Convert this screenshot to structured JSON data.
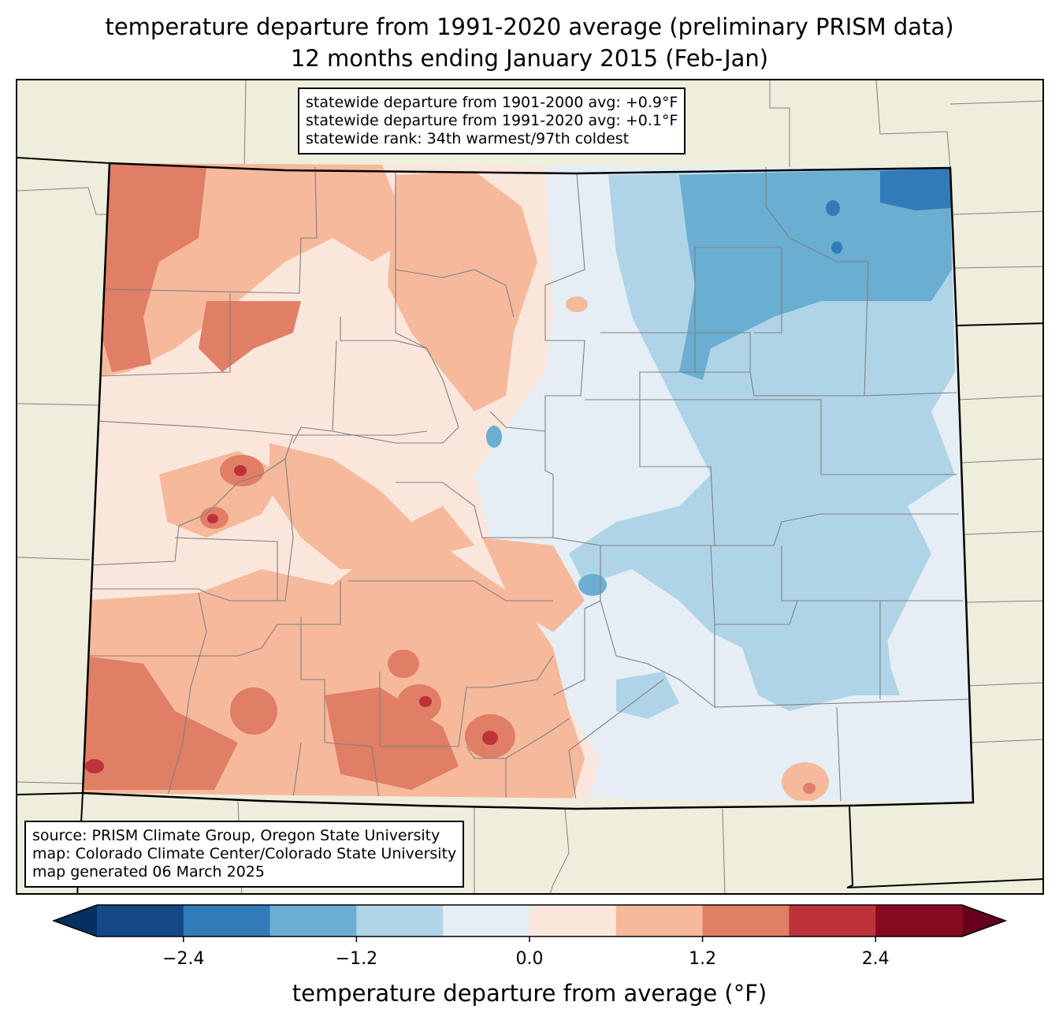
{
  "title": {
    "line1": "temperature departure from 1991-2020 average (preliminary PRISM data)",
    "line2": "12 months ending January 2015 (Feb-Jan)"
  },
  "stats_box": {
    "line1": "statewide departure from 1901-2000 avg: +0.9°F",
    "line2": "statewide departure from 1991-2020 avg: +0.1°F",
    "line3": "statewide rank: 34th warmest/97th coldest"
  },
  "source_box": {
    "line1": "source: PRISM Climate Group, Oregon State University",
    "line2": "map: Colorado Climate Center/Colorado State University",
    "line3": "map generated 06 March 2025"
  },
  "colorbar": {
    "label": "temperature departure from average (°F)",
    "ticks": [
      {
        "value": -2.4,
        "label": "−2.4"
      },
      {
        "value": -1.2,
        "label": "−1.2"
      },
      {
        "value": 0.0,
        "label": "0.0"
      },
      {
        "value": 1.2,
        "label": "1.2"
      },
      {
        "value": 2.4,
        "label": "2.4"
      }
    ],
    "range": [
      -3.0,
      3.0
    ],
    "step": 0.6,
    "colors": [
      "#053061",
      "#134a86",
      "#317cb8",
      "#6aaed2",
      "#b0d4e7",
      "#e5eef4",
      "#fbe6dc",
      "#f6b99c",
      "#e07e66",
      "#be333a",
      "#860a22",
      "#67001f"
    ]
  },
  "colors": {
    "land": "#efeedc",
    "state_border": "#000000",
    "county_border": "#808080"
  }
}
